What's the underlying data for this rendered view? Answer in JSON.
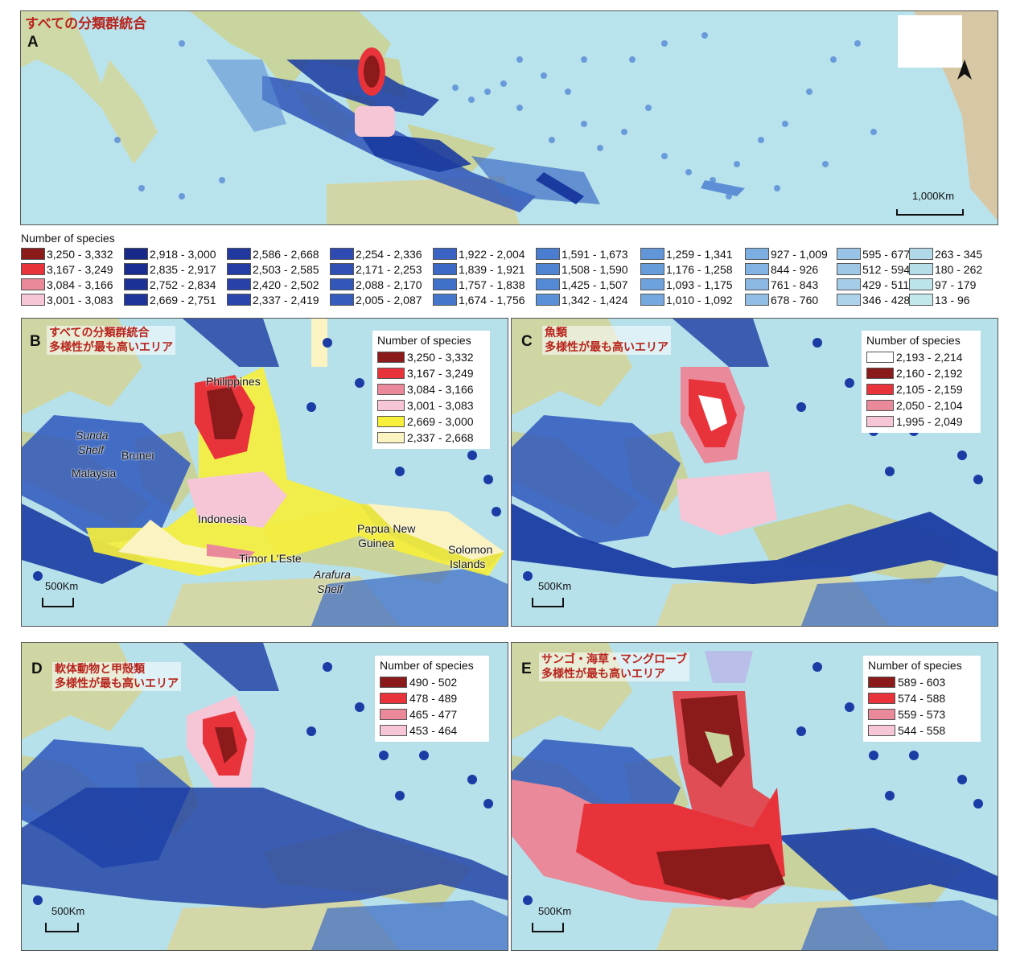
{
  "panel_a": {
    "letter": "A",
    "title": "すべての分類群統合",
    "scale": "1,000Km"
  },
  "main_legend": {
    "title": "Number of species",
    "columns": [
      [
        {
          "label": "3,250 - 3,332",
          "color": "#8b1a1a"
        },
        {
          "label": "3,167 - 3,249",
          "color": "#e8333b"
        },
        {
          "label": "3,084 - 3,166",
          "color": "#e9899a"
        },
        {
          "label": "3,001 - 3,083",
          "color": "#f6c6d6"
        }
      ],
      [
        {
          "label": "2,918 - 3,000",
          "color": "#172a8a"
        },
        {
          "label": "2,835 - 2,917",
          "color": "#192d90"
        },
        {
          "label": "2,752 - 2,834",
          "color": "#1c3196"
        },
        {
          "label": "2,669 - 2,751",
          "color": "#1e349b"
        }
      ],
      [
        {
          "label": "2,586 - 2,668",
          "color": "#21389f"
        },
        {
          "label": "2,503 - 2,585",
          "color": "#243ca4"
        },
        {
          "label": "2,420 - 2,502",
          "color": "#2741a9"
        },
        {
          "label": "2,337 - 2,419",
          "color": "#2a46ad"
        }
      ],
      [
        {
          "label": "2,254 - 2,336",
          "color": "#2d4bb2"
        },
        {
          "label": "2,171 - 2,253",
          "color": "#3050b6"
        },
        {
          "label": "2,088 - 2,170",
          "color": "#3356ba"
        },
        {
          "label": "2,005 - 2,087",
          "color": "#365cbe"
        }
      ],
      [
        {
          "label": "1,922 - 2,004",
          "color": "#3a63c3"
        },
        {
          "label": "1,839 - 1,921",
          "color": "#3d69c6"
        },
        {
          "label": "1,757 - 1,838",
          "color": "#4170c9"
        },
        {
          "label": "1,674 - 1,756",
          "color": "#4576cc"
        }
      ],
      [
        {
          "label": "1,591 - 1,673",
          "color": "#4a7dd0"
        },
        {
          "label": "1,508 - 1,590",
          "color": "#4f84d3"
        },
        {
          "label": "1,425 - 1,507",
          "color": "#548ad5"
        },
        {
          "label": "1,342 - 1,424",
          "color": "#5a90d7"
        }
      ],
      [
        {
          "label": "1,259 - 1,341",
          "color": "#6196d9"
        },
        {
          "label": "1,176 - 1,258",
          "color": "#679cdb"
        },
        {
          "label": "1,093 - 1,175",
          "color": "#6ea2dd"
        },
        {
          "label": "1,010 - 1,092",
          "color": "#75a8df"
        }
      ],
      [
        {
          "label": "927 - 1,009",
          "color": "#7caee1"
        },
        {
          "label": "844 - 926",
          "color": "#83b3e2"
        },
        {
          "label": "761 - 843",
          "color": "#8ab8e3"
        },
        {
          "label": "678 - 760",
          "color": "#91bde4"
        }
      ],
      [
        {
          "label": "595 - 677",
          "color": "#98c3e6"
        },
        {
          "label": "512 - 594",
          "color": "#9fc8e7"
        },
        {
          "label": "429 - 511",
          "color": "#a6cde8"
        },
        {
          "label": "346 - 428",
          "color": "#add2e9"
        }
      ],
      [
        {
          "label": "263 - 345",
          "color": "#b0d8e8"
        },
        {
          "label": "180 - 262",
          "color": "#b6dde9"
        },
        {
          "label": "97 - 179",
          "color": "#bce2ea"
        },
        {
          "label": "13 - 96",
          "color": "#c3e8ec"
        }
      ]
    ]
  },
  "panel_b": {
    "letter": "B",
    "title_line1": "すべての分類群統合",
    "title_line2": "多様性が最も高いエリア",
    "legend_title": "Number of species",
    "legend": [
      {
        "label": "3,250 - 3,332",
        "color": "#8b1a1a"
      },
      {
        "label": "3,167 - 3,249",
        "color": "#e8333b"
      },
      {
        "label": "3,084 - 3,166",
        "color": "#e9899a"
      },
      {
        "label": "3,001 - 3,083",
        "color": "#f6c6d6"
      },
      {
        "label": "2,669 - 3,000",
        "color": "#f7ef3a"
      },
      {
        "label": "2,337 - 2,668",
        "color": "#fbf3c2"
      }
    ],
    "scale": "500Km",
    "labels": {
      "philippines": "Philippines",
      "sunda": "Sunda",
      "shelf1": "Shelf",
      "brunei": "Brunei",
      "malaysia": "Malaysia",
      "indonesia": "Indonesia",
      "png1": "Papua New",
      "png2": "Guinea",
      "solomon1": "Solomon",
      "solomon2": "Islands",
      "timor": "Timor L'Este",
      "arafura": "Arafura",
      "shelf2": "Shelf"
    }
  },
  "panel_c": {
    "letter": "C",
    "title_line1": "魚類",
    "title_line2": "多様性が最も高いエリア",
    "legend_title": "Number of species",
    "legend": [
      {
        "label": "2,193 - 2,214",
        "color": "#ffffff"
      },
      {
        "label": "2,160 - 2,192",
        "color": "#8b1a1a"
      },
      {
        "label": "2,105 - 2,159",
        "color": "#e8333b"
      },
      {
        "label": "2,050 - 2,104",
        "color": "#e9899a"
      },
      {
        "label": "1,995 - 2,049",
        "color": "#f6c6d6"
      }
    ],
    "scale": "500Km"
  },
  "panel_d": {
    "letter": "D",
    "title_line1": "軟体動物と甲殻類",
    "title_line2": "多様性が最も高いエリア",
    "legend_title": "Number of species",
    "legend": [
      {
        "label": "490 - 502",
        "color": "#8b1a1a"
      },
      {
        "label": "478 - 489",
        "color": "#e8333b"
      },
      {
        "label": "465 - 477",
        "color": "#e9899a"
      },
      {
        "label": "453 - 464",
        "color": "#f6c6d6"
      }
    ],
    "scale": "500Km"
  },
  "panel_e": {
    "letter": "E",
    "title_line1": "サンゴ・海草・マングローブ",
    "title_line2": "多様性が最も高いエリア",
    "legend_title": "Number of species",
    "legend": [
      {
        "label": "589 - 603",
        "color": "#8b1a1a"
      },
      {
        "label": "574 - 588",
        "color": "#e8333b"
      },
      {
        "label": "559 - 573",
        "color": "#e9899a"
      },
      {
        "label": "544 - 558",
        "color": "#f6c6d6"
      }
    ],
    "scale": "500Km"
  }
}
